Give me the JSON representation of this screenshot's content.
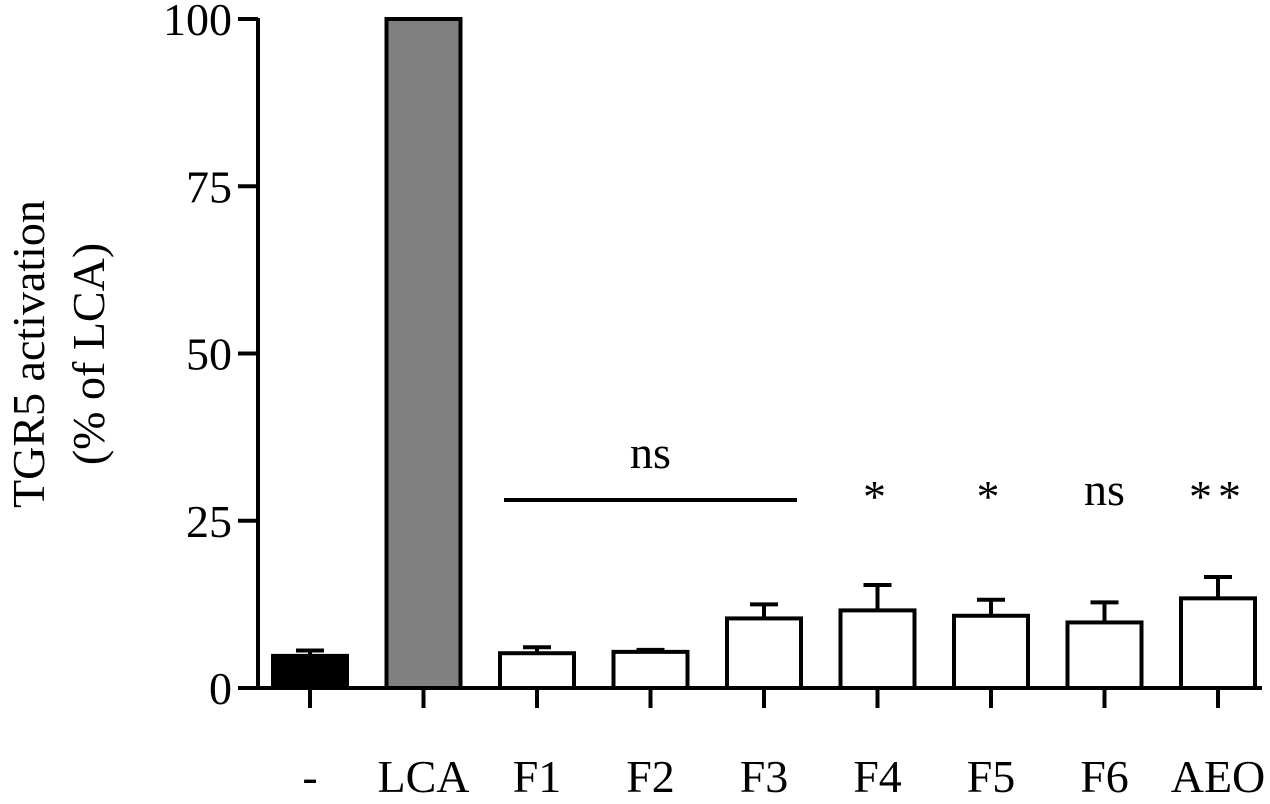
{
  "chart_data": {
    "type": "bar",
    "ylabel": [
      "TGR5 activation",
      "(% of LCA)"
    ],
    "xlabel": "",
    "ylim": [
      0,
      100
    ],
    "yticks": [
      0,
      25,
      50,
      75,
      100
    ],
    "grid": false,
    "categories": [
      "-",
      "LCA",
      "F1",
      "F2",
      "F3",
      "F4",
      "F5",
      "F6",
      "AEO"
    ],
    "values": [
      4.8,
      100,
      5.2,
      5.4,
      10.4,
      11.6,
      10.8,
      9.8,
      13.4
    ],
    "errors": [
      0.8,
      0,
      0.9,
      0.3,
      2.1,
      3.8,
      2.4,
      3.0,
      3.2
    ],
    "colors": [
      "#000000",
      "#808080",
      "#ffffff",
      "#ffffff",
      "#ffffff",
      "#ffffff",
      "#ffffff",
      "#ffffff",
      "#ffffff"
    ],
    "annotations": [
      {
        "text": "ns",
        "span": [
          "F1",
          "F3"
        ],
        "line": true
      },
      {
        "text": "*",
        "category": "F4"
      },
      {
        "text": "*",
        "category": "F5"
      },
      {
        "text": "ns",
        "category": "F6"
      },
      {
        "text": "**",
        "category": "AEO"
      }
    ]
  }
}
